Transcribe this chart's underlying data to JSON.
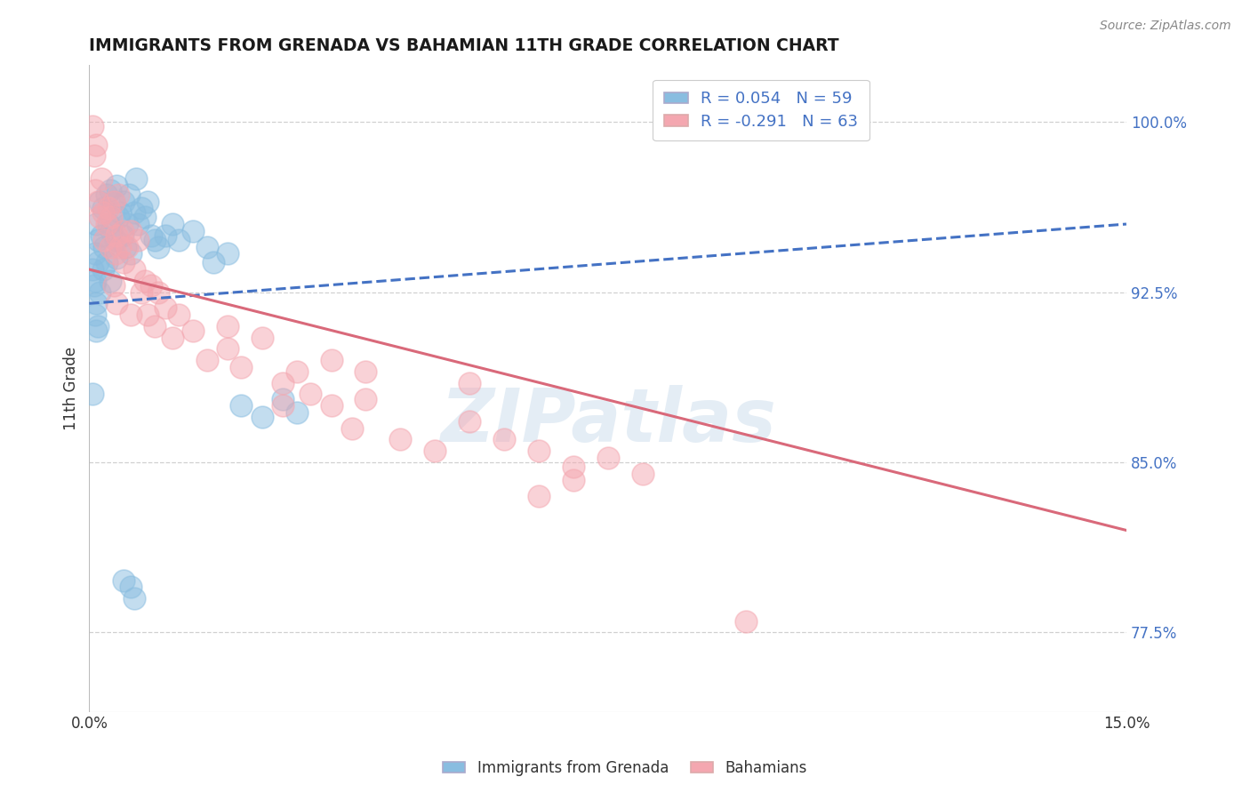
{
  "title": "IMMIGRANTS FROM GRENADA VS BAHAMIAN 11TH GRADE CORRELATION CHART",
  "source_text": "Source: ZipAtlas.com",
  "ylabel": "11th Grade",
  "xmin": 0.0,
  "xmax": 15.0,
  "ymin": 74.0,
  "ymax": 102.5,
  "yticks": [
    77.5,
    85.0,
    92.5,
    100.0
  ],
  "xticks": [
    0.0,
    15.0
  ],
  "xtick_labels": [
    "0.0%",
    "15.0%"
  ],
  "ytick_labels": [
    "77.5%",
    "85.0%",
    "92.5%",
    "100.0%"
  ],
  "legend_r1": "R = 0.054",
  "legend_n1": "N = 59",
  "legend_r2": "R = -0.291",
  "legend_n2": "N = 63",
  "blue_color": "#89bde0",
  "pink_color": "#f4a7b0",
  "blue_line_color": "#4472c4",
  "pink_line_color": "#d9697a",
  "blue_line_x": [
    0.0,
    15.0
  ],
  "blue_line_y": [
    92.0,
    95.5
  ],
  "pink_line_x": [
    0.0,
    15.0
  ],
  "pink_line_y": [
    93.5,
    82.0
  ],
  "blue_scatter_x": [
    0.05,
    0.07,
    0.08,
    0.09,
    0.1,
    0.1,
    0.12,
    0.13,
    0.15,
    0.15,
    0.18,
    0.2,
    0.2,
    0.22,
    0.25,
    0.25,
    0.28,
    0.3,
    0.3,
    0.32,
    0.35,
    0.38,
    0.4,
    0.4,
    0.42,
    0.45,
    0.48,
    0.5,
    0.52,
    0.55,
    0.58,
    0.6,
    0.65,
    0.68,
    0.7,
    0.75,
    0.8,
    0.85,
    0.9,
    0.95,
    1.0,
    1.1,
    1.2,
    1.3,
    1.5,
    1.7,
    1.8,
    2.0,
    2.2,
    2.5,
    2.8,
    3.0,
    0.05,
    0.08,
    0.1,
    0.12,
    0.6,
    0.65,
    0.5
  ],
  "blue_scatter_y": [
    93.5,
    92.8,
    94.2,
    93.0,
    95.5,
    92.0,
    94.8,
    93.8,
    96.5,
    92.5,
    95.0,
    96.2,
    93.5,
    94.5,
    96.8,
    93.8,
    95.5,
    97.0,
    93.0,
    95.2,
    96.5,
    94.8,
    97.2,
    94.0,
    95.8,
    96.0,
    95.0,
    96.5,
    94.5,
    95.5,
    96.8,
    94.2,
    96.0,
    97.5,
    95.5,
    96.2,
    95.8,
    96.5,
    95.0,
    94.8,
    94.5,
    95.0,
    95.5,
    94.8,
    95.2,
    94.5,
    93.8,
    94.2,
    87.5,
    87.0,
    87.8,
    87.2,
    88.0,
    91.5,
    90.8,
    91.0,
    79.5,
    79.0,
    79.8
  ],
  "pink_scatter_x": [
    0.05,
    0.07,
    0.08,
    0.1,
    0.12,
    0.15,
    0.18,
    0.2,
    0.22,
    0.25,
    0.28,
    0.3,
    0.32,
    0.35,
    0.38,
    0.4,
    0.42,
    0.45,
    0.48,
    0.5,
    0.55,
    0.6,
    0.65,
    0.7,
    0.75,
    0.8,
    0.85,
    0.9,
    0.95,
    1.0,
    1.1,
    1.2,
    1.3,
    1.5,
    1.7,
    2.0,
    2.2,
    2.5,
    2.8,
    3.0,
    3.2,
    3.5,
    3.8,
    4.0,
    4.5,
    5.0,
    5.5,
    6.0,
    6.5,
    7.0,
    7.5,
    8.0,
    0.35,
    0.6,
    0.4,
    2.8,
    5.5,
    7.0,
    3.5,
    4.0,
    6.5,
    2.0,
    9.5
  ],
  "pink_scatter_y": [
    99.8,
    98.5,
    97.0,
    99.0,
    96.5,
    95.8,
    97.5,
    96.0,
    94.8,
    95.5,
    96.2,
    94.5,
    95.8,
    96.5,
    94.2,
    95.0,
    96.8,
    94.5,
    95.2,
    93.8,
    94.5,
    95.2,
    93.5,
    94.8,
    92.5,
    93.0,
    91.5,
    92.8,
    91.0,
    92.5,
    91.8,
    90.5,
    91.5,
    90.8,
    89.5,
    90.0,
    89.2,
    90.5,
    88.5,
    89.0,
    88.0,
    87.5,
    86.5,
    87.8,
    86.0,
    85.5,
    88.5,
    86.0,
    85.5,
    84.8,
    85.2,
    84.5,
    92.8,
    91.5,
    92.0,
    87.5,
    86.8,
    84.2,
    89.5,
    89.0,
    83.5,
    91.0,
    78.0
  ],
  "watermark": "ZIPatlas",
  "background_color": "#ffffff",
  "grid_color": "#d0d0d0"
}
